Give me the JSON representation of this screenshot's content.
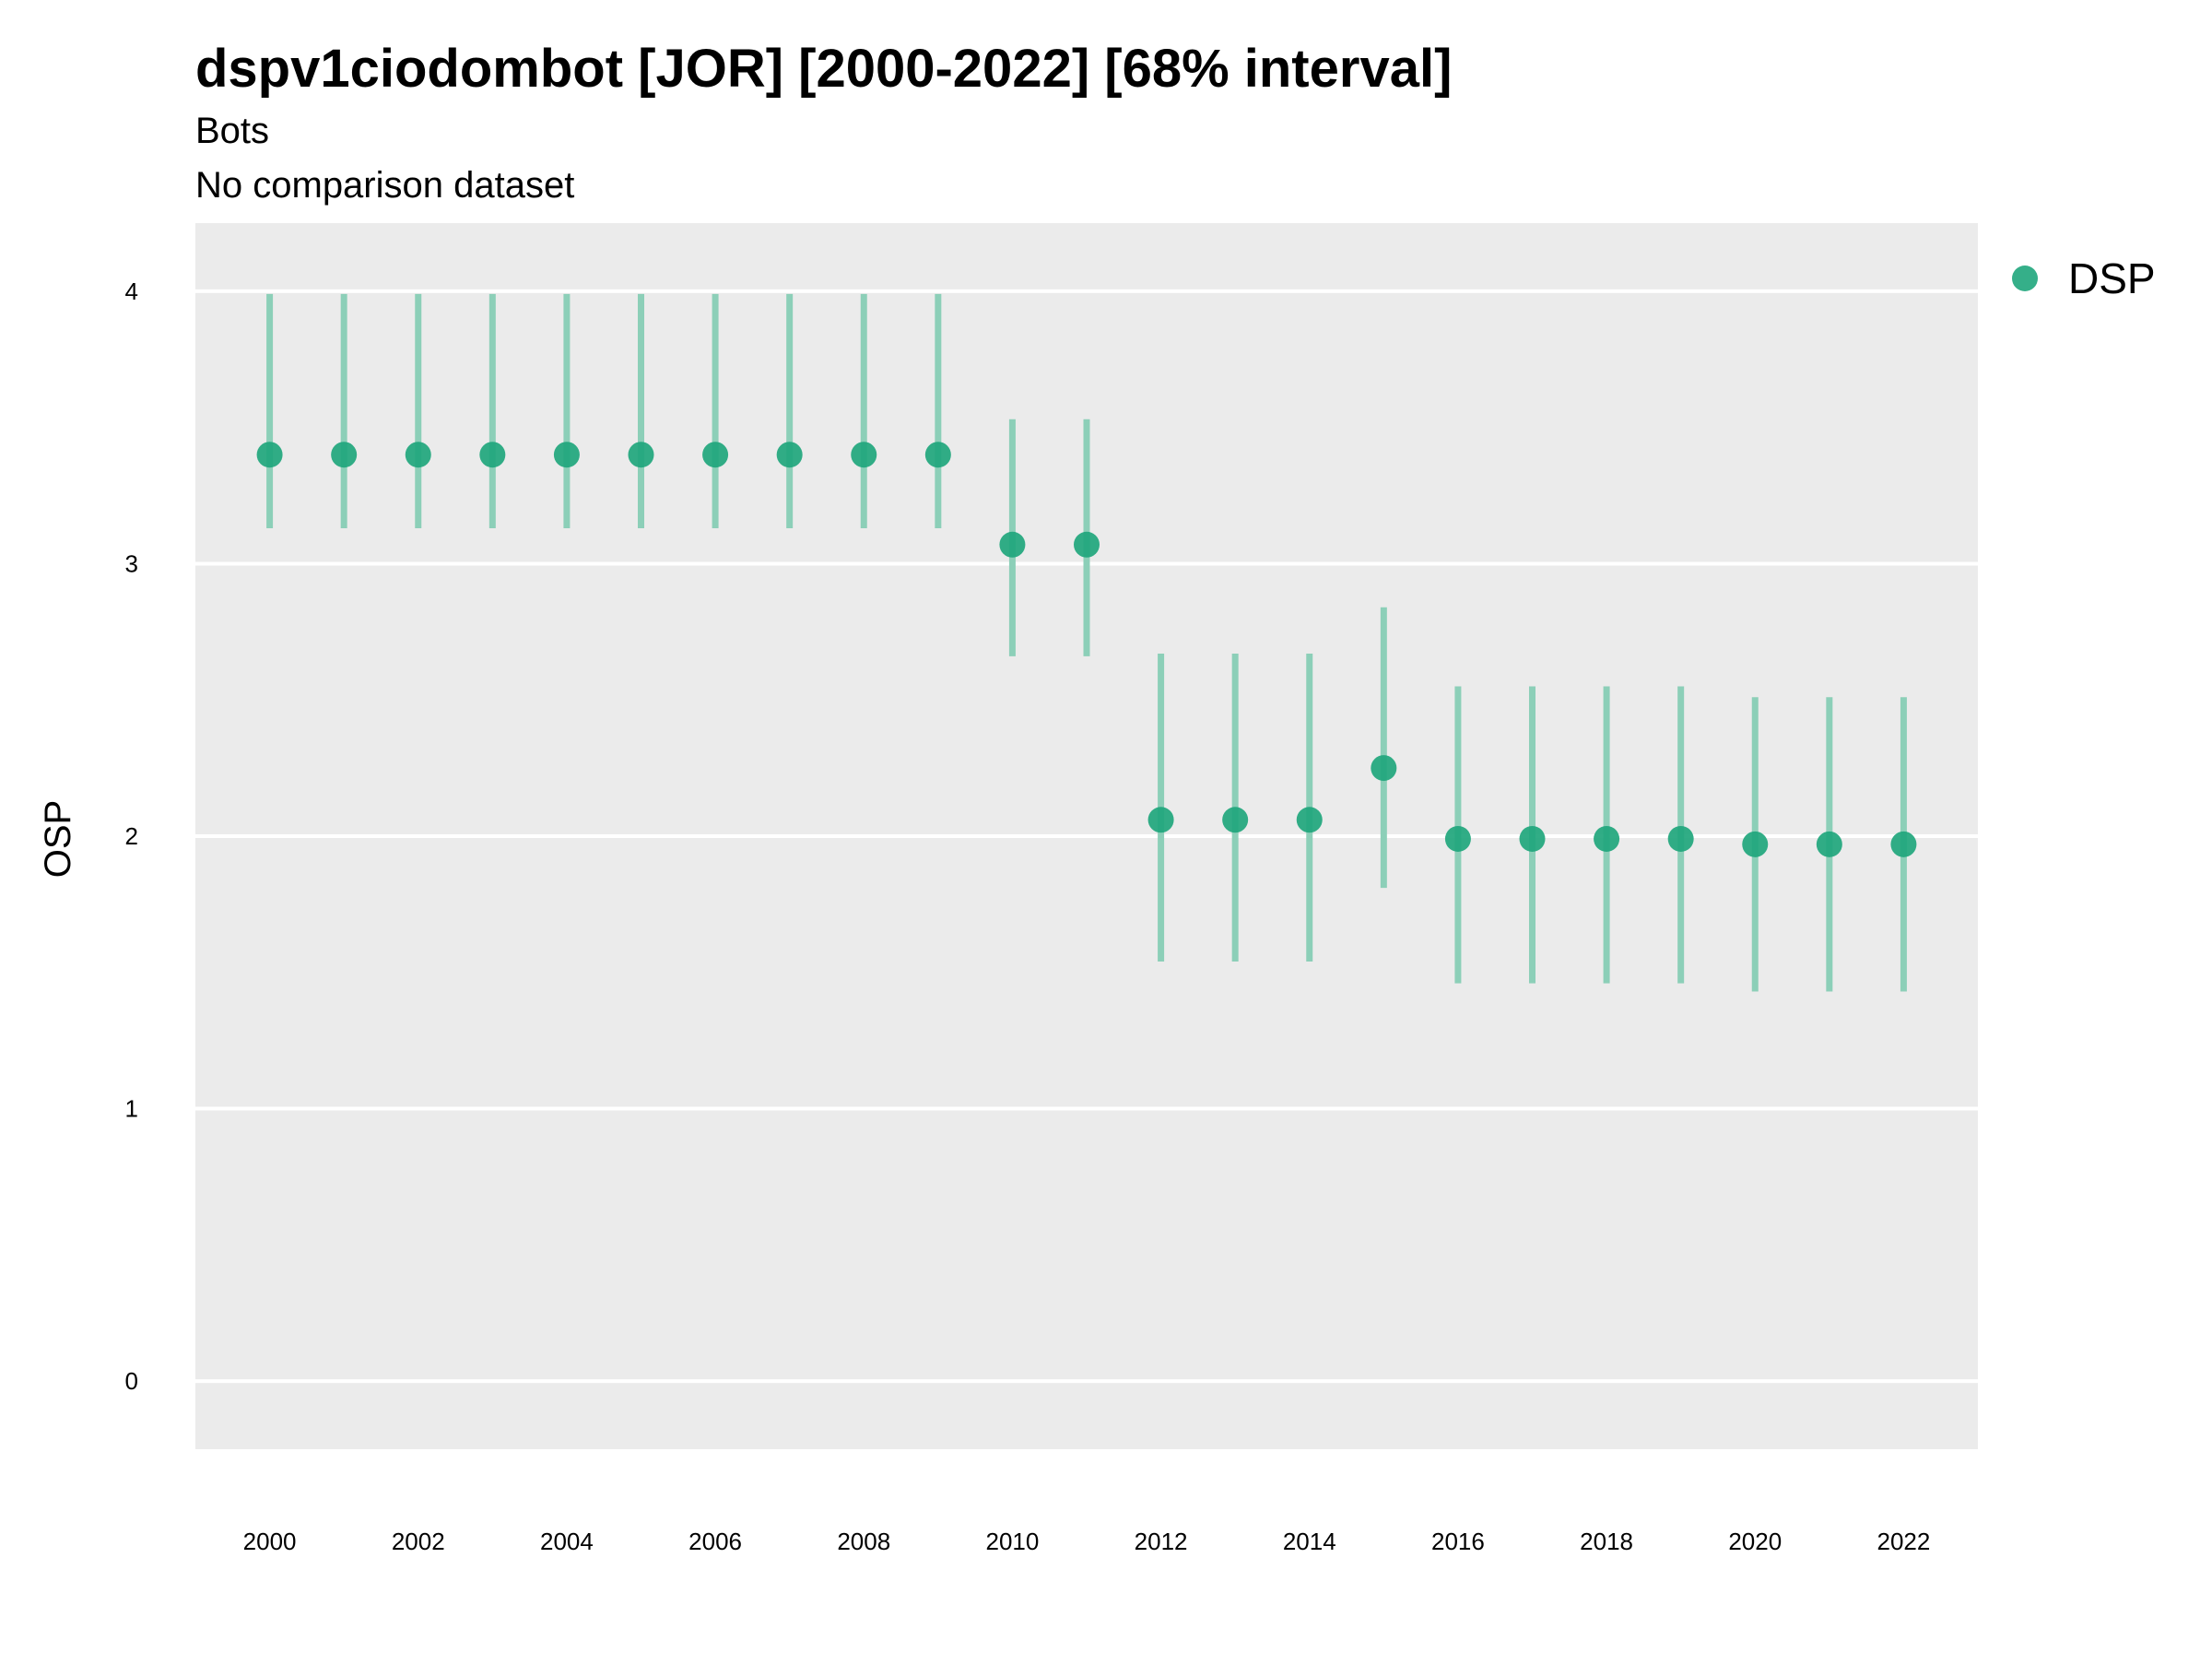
{
  "chart_data": {
    "type": "scatter",
    "title": "dspv1ciodombot [JOR] [2000-2022] [68% interval]",
    "subtitle_lines": [
      "Bots",
      "No comparison dataset"
    ],
    "xlabel": "",
    "ylabel": "OSP",
    "ylim": [
      -0.25,
      4.25
    ],
    "yticks": [
      0,
      1,
      2,
      3,
      4
    ],
    "xticks": [
      2000,
      2002,
      2004,
      2006,
      2008,
      2010,
      2012,
      2014,
      2016,
      2018,
      2020,
      2022
    ],
    "xlim": [
      1999,
      2023
    ],
    "grid": "horizontal",
    "legend": {
      "position": "right",
      "entries": [
        "DSP"
      ]
    },
    "colors": {
      "point": "#1fa67c",
      "interval": "#8ccfb8",
      "panel": "#ebebeb",
      "grid": "#ffffff"
    },
    "series": [
      {
        "name": "DSP",
        "x": [
          2000,
          2001,
          2002,
          2003,
          2004,
          2005,
          2006,
          2007,
          2008,
          2009,
          2010,
          2011,
          2012,
          2013,
          2014,
          2015,
          2016,
          2017,
          2018,
          2019,
          2020,
          2021,
          2022
        ],
        "y": [
          3.4,
          3.4,
          3.4,
          3.4,
          3.4,
          3.4,
          3.4,
          3.4,
          3.4,
          3.4,
          3.07,
          3.07,
          2.06,
          2.06,
          2.06,
          2.25,
          1.99,
          1.99,
          1.99,
          1.99,
          1.97,
          1.97,
          1.97
        ],
        "lower": [
          3.13,
          3.13,
          3.13,
          3.13,
          3.13,
          3.13,
          3.13,
          3.13,
          3.13,
          3.13,
          2.66,
          2.66,
          1.54,
          1.54,
          1.54,
          1.81,
          1.46,
          1.46,
          1.46,
          1.46,
          1.43,
          1.43,
          1.43
        ],
        "upper": [
          3.99,
          3.99,
          3.99,
          3.99,
          3.99,
          3.99,
          3.99,
          3.99,
          3.99,
          3.99,
          3.53,
          3.53,
          2.67,
          2.67,
          2.67,
          2.84,
          2.55,
          2.55,
          2.55,
          2.55,
          2.51,
          2.51,
          2.51
        ]
      }
    ]
  }
}
